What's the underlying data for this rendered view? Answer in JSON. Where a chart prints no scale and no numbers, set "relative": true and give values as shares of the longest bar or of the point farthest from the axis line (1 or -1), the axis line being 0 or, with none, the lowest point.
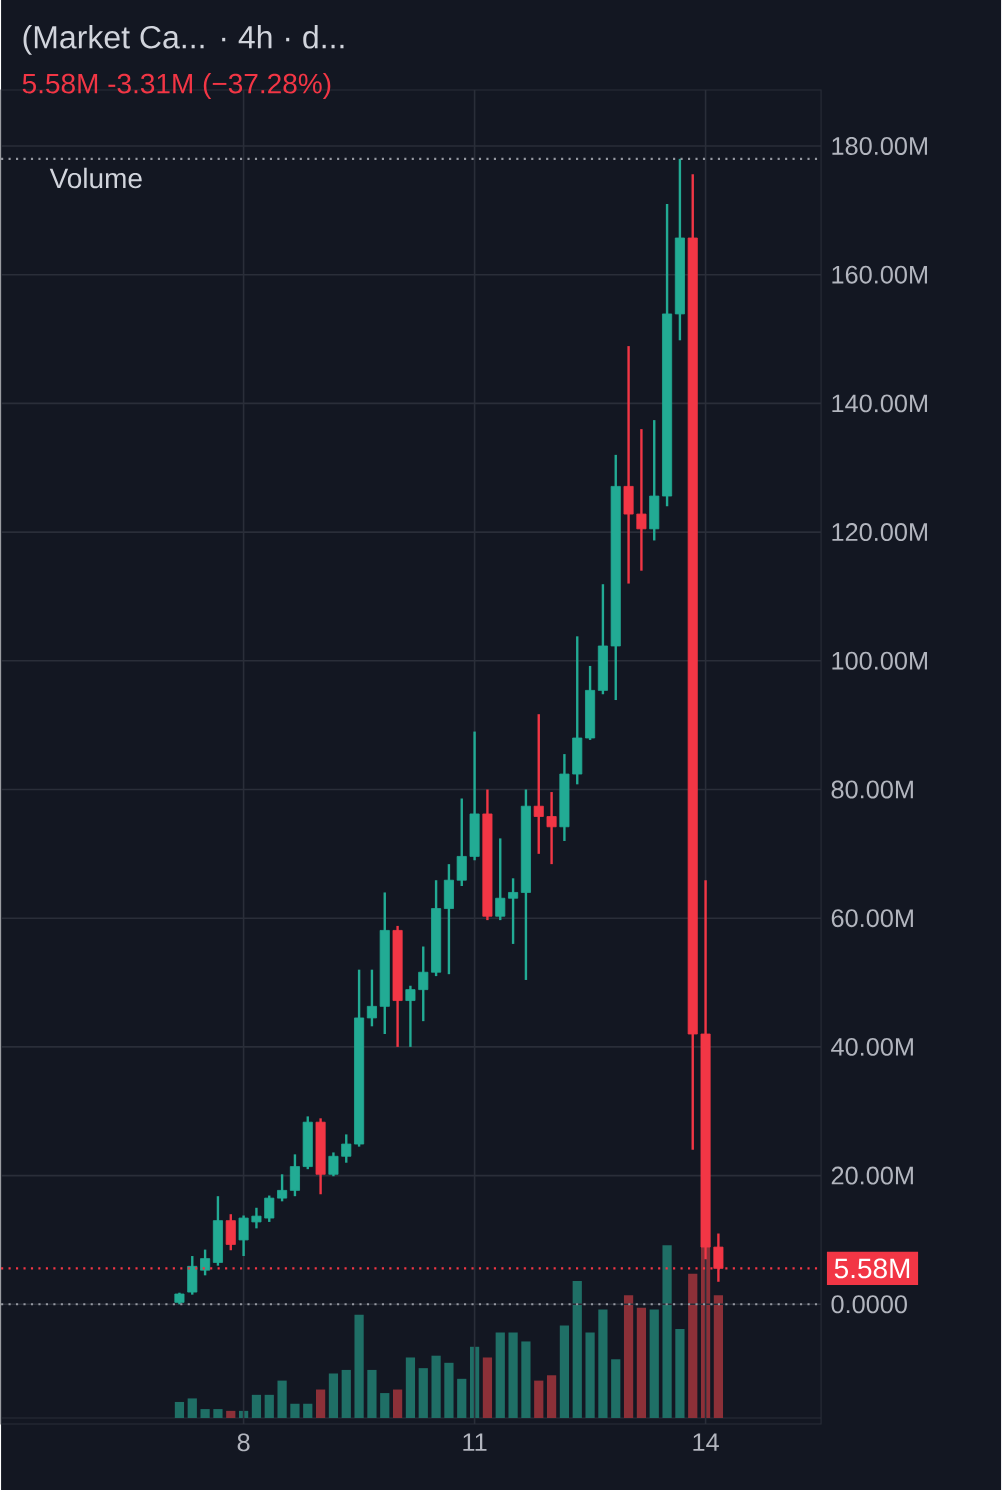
{
  "chart_data": [
    {
      "type": "candlestick",
      "title": "(Market Ca... · 4h · d...",
      "subtitle": "5.58M  -3.31M (−37.28%)",
      "x": [
        7.1667,
        7.3333,
        7.5,
        7.6667,
        7.8333,
        8,
        8.1667,
        8.3333,
        8.5,
        8.6667,
        8.8333,
        9,
        9.1667,
        9.3333,
        9.5,
        9.6667,
        9.8333,
        10,
        10.1667,
        10.3333,
        10.5,
        10.6667,
        10.8333,
        11,
        11.1667,
        11.3333,
        11.5,
        11.6667,
        11.8333,
        12,
        12.1667,
        12.3333,
        12.5,
        12.6667,
        12.8333,
        13,
        13.1667,
        13.3333,
        13.5,
        13.6667,
        13.8333,
        14,
        14.1667
      ],
      "ohlc": [
        [
          0.3,
          1.8,
          0,
          1.6
        ],
        [
          1.9,
          7.5,
          1.5,
          5.9
        ],
        [
          5.3,
          8.5,
          4.5,
          7.1
        ],
        [
          6.5,
          16.8,
          6,
          13
        ],
        [
          13,
          14,
          8.4,
          9.3
        ],
        [
          10,
          13.8,
          7.5,
          13.4
        ],
        [
          12.8,
          15,
          11.8,
          13.7
        ],
        [
          13.4,
          16.9,
          12.8,
          16.5
        ],
        [
          16.5,
          20.2,
          16,
          17.7
        ],
        [
          17.7,
          23.3,
          16.8,
          21.4
        ],
        [
          21.4,
          29.2,
          21,
          28.3
        ],
        [
          28.3,
          28.9,
          17.1,
          20.2
        ],
        [
          20.2,
          23.6,
          19.9,
          23
        ],
        [
          23,
          26.4,
          22,
          24.9
        ],
        [
          24.9,
          52,
          24.5,
          44.5
        ],
        [
          44.5,
          52,
          43.2,
          46.3
        ],
        [
          46.3,
          64,
          42,
          58.1
        ],
        [
          58.1,
          58.8,
          40,
          47.2
        ],
        [
          47.2,
          49.5,
          40,
          48.9
        ],
        [
          48.9,
          55.6,
          44,
          51.6
        ],
        [
          51.6,
          65.9,
          51,
          61.5
        ],
        [
          61.5,
          68.4,
          51.3,
          65.9
        ],
        [
          65.9,
          78.6,
          65,
          69.6
        ],
        [
          69.6,
          89,
          69,
          76.2
        ],
        [
          76.2,
          80,
          59.7,
          60.3
        ],
        [
          60.3,
          72.4,
          59.7,
          63.1
        ],
        [
          63.1,
          66.2,
          56,
          64
        ],
        [
          64,
          80,
          50.4,
          77.4
        ],
        [
          77.4,
          91.7,
          70,
          75.8
        ],
        [
          75.8,
          79.6,
          68.4,
          74.2
        ],
        [
          74.2,
          85.5,
          72,
          82.4
        ],
        [
          82.4,
          103.8,
          80.8,
          88
        ],
        [
          88,
          99.2,
          87.7,
          95.4
        ],
        [
          95.4,
          111.9,
          94.8,
          102.3
        ],
        [
          102.3,
          132,
          93.9,
          127.1
        ],
        [
          127.1,
          148.9,
          112,
          122.8
        ],
        [
          122.8,
          136,
          114,
          120.5
        ],
        [
          120.5,
          137.4,
          118.7,
          125.6
        ],
        [
          125.6,
          171,
          124,
          153.9
        ],
        [
          153.9,
          178,
          149.8,
          165.7
        ],
        [
          165.7,
          175.6,
          24,
          42
        ],
        [
          42,
          65.9,
          7,
          8.89
        ],
        [
          8.89,
          11,
          3.5,
          5.58
        ]
      ],
      "colors": [
        "#22ab94",
        "#22ab94",
        "#22ab94",
        "#22ab94",
        "#f23645",
        "#22ab94",
        "#22ab94",
        "#22ab94",
        "#22ab94",
        "#22ab94",
        "#22ab94",
        "#f23645",
        "#22ab94",
        "#22ab94",
        "#22ab94",
        "#22ab94",
        "#22ab94",
        "#f23645",
        "#22ab94",
        "#22ab94",
        "#22ab94",
        "#22ab94",
        "#22ab94",
        "#22ab94",
        "#f23645",
        "#22ab94",
        "#22ab94",
        "#22ab94",
        "#f23645",
        "#f23645",
        "#22ab94",
        "#22ab94",
        "#22ab94",
        "#22ab94",
        "#22ab94",
        "#f23645",
        "#f23645",
        "#22ab94",
        "#22ab94",
        "#22ab94",
        "#f23645",
        "#f23645",
        "#f23645"
      ],
      "xlim": [
        4.85,
        15.5
      ],
      "xticks": [
        8,
        11,
        14
      ],
      "ylim": [
        -18.6,
        188.7
      ],
      "yticks": [
        {
          "value": 0,
          "label": "0.0000"
        },
        {
          "value": 20,
          "label": "20.00M"
        },
        {
          "value": 40,
          "label": "40.00M"
        },
        {
          "value": 60,
          "label": "60.00M"
        },
        {
          "value": 80,
          "label": "80.00M"
        },
        {
          "value": 100,
          "label": "100.00M"
        },
        {
          "value": 120,
          "label": "120.00M"
        },
        {
          "value": 140,
          "label": "140.00M"
        },
        {
          "value": 160,
          "label": "160.00M"
        },
        {
          "value": 180,
          "label": "180.00M"
        }
      ],
      "grid": true,
      "ref_lines": [
        {
          "axis": "y",
          "value": 5.58,
          "label": "5.58M",
          "color": "#f23645",
          "line_style": "dotted"
        },
        {
          "axis": "y",
          "value": 178,
          "color": "#9598a1",
          "line_style": "dotted"
        },
        {
          "axis": "y",
          "value": 0,
          "color": "#9598a1",
          "line_style": "dotted"
        }
      ]
    },
    {
      "type": "bar",
      "title": "Volume",
      "relative": true,
      "xlim": [
        4.85,
        15.5
      ],
      "x": [
        7.1667,
        7.3333,
        7.5,
        7.6667,
        7.8333,
        8,
        8.1667,
        8.3333,
        8.5,
        8.6667,
        8.8333,
        9,
        9.1667,
        9.3333,
        9.5,
        9.6667,
        9.8333,
        10,
        10.1667,
        10.3333,
        10.5,
        10.6667,
        10.8333,
        11,
        11.1667,
        11.3333,
        11.5,
        11.6667,
        11.8333,
        12,
        12.1667,
        12.3333,
        12.5,
        12.6667,
        12.8333,
        13,
        13.1667,
        13.3333,
        13.5,
        13.6667,
        13.8333,
        14,
        14.1667
      ],
      "values": [
        0.09,
        0.11,
        0.05,
        0.05,
        0.04,
        0.04,
        0.13,
        0.13,
        0.21,
        0.08,
        0.08,
        0.16,
        0.25,
        0.27,
        0.58,
        0.27,
        0.14,
        0.16,
        0.34,
        0.28,
        0.35,
        0.31,
        0.22,
        0.4,
        0.34,
        0.48,
        0.48,
        0.43,
        0.21,
        0.24,
        0.52,
        0.77,
        0.48,
        0.61,
        0.33,
        0.69,
        0.62,
        0.61,
        0.97,
        0.5,
        0.81,
        1,
        0.69
      ],
      "colors": [
        "#1f6f66",
        "#1f6f66",
        "#1f6f66",
        "#1f6f66",
        "#8c3038",
        "#1f6f66",
        "#1f6f66",
        "#1f6f66",
        "#1f6f66",
        "#1f6f66",
        "#1f6f66",
        "#8c3038",
        "#1f6f66",
        "#1f6f66",
        "#1f6f66",
        "#1f6f66",
        "#1f6f66",
        "#8c3038",
        "#1f6f66",
        "#1f6f66",
        "#1f6f66",
        "#1f6f66",
        "#1f6f66",
        "#1f6f66",
        "#8c3038",
        "#1f6f66",
        "#1f6f66",
        "#1f6f66",
        "#8c3038",
        "#8c3038",
        "#1f6f66",
        "#1f6f66",
        "#1f6f66",
        "#1f6f66",
        "#1f6f66",
        "#8c3038",
        "#8c3038",
        "#1f6f66",
        "#1f6f66",
        "#1f6f66",
        "#8c3038",
        "#8c3038",
        "#8c3038"
      ]
    }
  ]
}
